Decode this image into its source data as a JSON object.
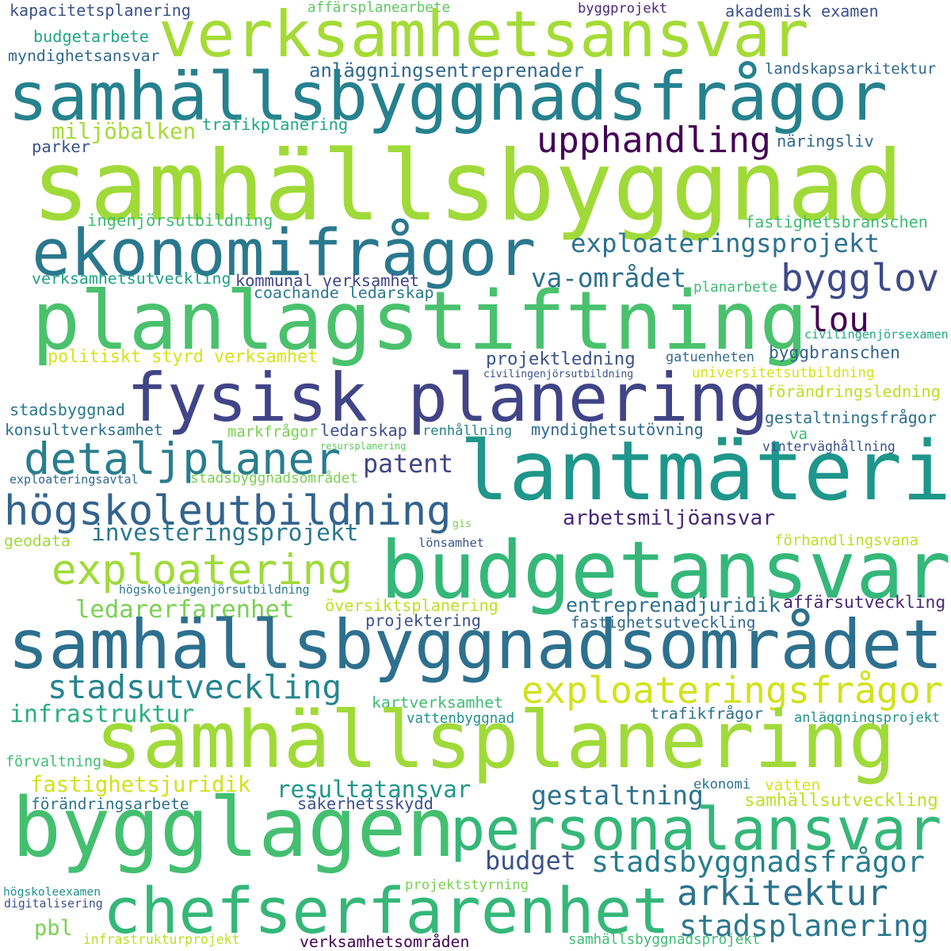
{
  "words": [
    {
      "text": "kapacitetsplanering",
      "color": "#3b528b"
    },
    {
      "text": "affärsplanearbete",
      "color": "#5ec962"
    },
    {
      "text": "byggprojekt",
      "color": "#482878"
    },
    {
      "text": "akademisk examen",
      "color": "#3b528b"
    },
    {
      "text": "verksamhetsansvar",
      "color": "#a5db36"
    },
    {
      "text": "budgetarbete",
      "color": "#21a585"
    },
    {
      "text": "myndighetsansvar",
      "color": "#31688e"
    },
    {
      "text": "anläggningsentreprenader",
      "color": "#31688e"
    },
    {
      "text": "landskapsarkitektur",
      "color": "#31688e"
    },
    {
      "text": "samhällsbyggnadsfrågor",
      "color": "#26818e"
    },
    {
      "text": "miljöbalken",
      "color": "#a5db36"
    },
    {
      "text": "trafikplanering",
      "color": "#22a884"
    },
    {
      "text": "upphandling",
      "color": "#440154"
    },
    {
      "text": "parker",
      "color": "#3b528b"
    },
    {
      "text": "näringsliv",
      "color": "#31688e"
    },
    {
      "text": "samhällsbyggnad",
      "color": "#a0da39"
    },
    {
      "text": "ingenjörsutbildning",
      "color": "#3fbc73"
    },
    {
      "text": "fastighetsbranschen",
      "color": "#3fbc73"
    },
    {
      "text": "ekonomifrågor",
      "color": "#2a788e"
    },
    {
      "text": "exploateringsprojekt",
      "color": "#2c728e"
    },
    {
      "text": "verksamhetsutveckling",
      "color": "#1fa187"
    },
    {
      "text": "kommunal verksamhet",
      "color": "#404688"
    },
    {
      "text": "va-området",
      "color": "#2d708e"
    },
    {
      "text": "bygglov",
      "color": "#3e4a89"
    },
    {
      "text": "coachande ledarskap",
      "color": "#2a788e"
    },
    {
      "text": "planarbete",
      "color": "#3fbc73"
    },
    {
      "text": "planlagstiftning",
      "color": "#4ac16d"
    },
    {
      "text": "lou",
      "color": "#440154"
    },
    {
      "text": "civilingenjörsexamen",
      "color": "#22a884"
    },
    {
      "text": "politiskt styrd verksamhet",
      "color": "#d8e219"
    },
    {
      "text": "projektledning",
      "color": "#3b528b"
    },
    {
      "text": "gatuenheten",
      "color": "#31688e"
    },
    {
      "text": "byggbranschen",
      "color": "#33638d"
    },
    {
      "text": "fysisk planering",
      "color": "#414487"
    },
    {
      "text": "civilingenjörsutbildning",
      "color": "#3b528b"
    },
    {
      "text": "universitetsutbildning",
      "color": "#d8e219"
    },
    {
      "text": "förändringsledning",
      "color": "#bddf26"
    },
    {
      "text": "stadsbyggnad",
      "color": "#2a788e"
    },
    {
      "text": "gestaltningsfrågor",
      "color": "#2d708e"
    },
    {
      "text": "konsultverksamhet",
      "color": "#2c728e"
    },
    {
      "text": "markfrågor",
      "color": "#7ad151"
    },
    {
      "text": "ledarskap",
      "color": "#3b528b"
    },
    {
      "text": "renhållning",
      "color": "#26828e"
    },
    {
      "text": "myndighetsutövning",
      "color": "#31688e"
    },
    {
      "text": "va",
      "color": "#3fbc73"
    },
    {
      "text": "detaljplaner",
      "color": "#287d8e"
    },
    {
      "text": "lantmäteri",
      "color": "#1f968b"
    },
    {
      "text": "resursplanering",
      "color": "#5ec962"
    },
    {
      "text": "vinterväghållning",
      "color": "#3b528b"
    },
    {
      "text": "patent",
      "color": "#404688"
    },
    {
      "text": "exploateringsavtal",
      "color": "#31688e"
    },
    {
      "text": "stadsbyggnadsområdet",
      "color": "#7ad151"
    },
    {
      "text": "högskoleutbildning",
      "color": "#33638d"
    },
    {
      "text": "arbetsmiljöansvar",
      "color": "#482878"
    },
    {
      "text": "gis",
      "color": "#7ad151"
    },
    {
      "text": "investeringsprojekt",
      "color": "#2a788e"
    },
    {
      "text": "geodata",
      "color": "#a0da39"
    },
    {
      "text": "lönsamhet",
      "color": "#3b528b"
    },
    {
      "text": "förhandlingsvana",
      "color": "#bddf26"
    },
    {
      "text": "exploatering",
      "color": "#a0da39"
    },
    {
      "text": "budgetansvar",
      "color": "#35b779"
    },
    {
      "text": "högskoleingenjörsutbildning",
      "color": "#2a788e"
    },
    {
      "text": "ledarerfarenhet",
      "color": "#7ad151"
    },
    {
      "text": "översiktsplanering",
      "color": "#bddf26"
    },
    {
      "text": "entreprenadjuridik",
      "color": "#2d708e"
    },
    {
      "text": "affärsutveckling",
      "color": "#482878"
    },
    {
      "text": "projektering",
      "color": "#3b528b"
    },
    {
      "text": "fastighetsutveckling",
      "color": "#31688e"
    },
    {
      "text": "samhällsbyggnadsområdet",
      "color": "#2d708e"
    },
    {
      "text": "stadsutveckling",
      "color": "#25858e"
    },
    {
      "text": "exploateringsfrågor",
      "color": "#d2e21b"
    },
    {
      "text": "infrastruktur",
      "color": "#2ab07f"
    },
    {
      "text": "kartverksamhet",
      "color": "#3fbc73"
    },
    {
      "text": "trafikfrågor",
      "color": "#2c728e"
    },
    {
      "text": "vattenbyggnad",
      "color": "#21918c"
    },
    {
      "text": "anläggningsprojekt",
      "color": "#21918c"
    },
    {
      "text": "samhällsplanering",
      "color": "#a0da39"
    },
    {
      "text": "förvaltning",
      "color": "#3fbc73"
    },
    {
      "text": "fastighetsjuridik",
      "color": "#d2e21b"
    },
    {
      "text": "resultatansvar",
      "color": "#1f968b"
    },
    {
      "text": "gestaltning",
      "color": "#2c728e"
    },
    {
      "text": "ekonomi",
      "color": "#2c728e"
    },
    {
      "text": "vatten",
      "color": "#d8e219"
    },
    {
      "text": "samhällsutveckling",
      "color": "#bddf26"
    },
    {
      "text": "förändringsarbete",
      "color": "#2c728e"
    },
    {
      "text": "säkerhetsskydd",
      "color": "#3b528b"
    },
    {
      "text": "bygglagen",
      "color": "#44bf70"
    },
    {
      "text": "personalansvar",
      "color": "#35b779"
    },
    {
      "text": "budget",
      "color": "#3b528b"
    },
    {
      "text": "stadsbyggnadsfrågor",
      "color": "#287d8e"
    },
    {
      "text": "arkitektur",
      "color": "#2c728e"
    },
    {
      "text": "högskoleexamen",
      "color": "#21918c"
    },
    {
      "text": "digitalisering",
      "color": "#3b528b"
    },
    {
      "text": "projektstyrning",
      "color": "#7ad151"
    },
    {
      "text": "chefserfarenhet",
      "color": "#35b779"
    },
    {
      "text": "pbl",
      "color": "#7ad151"
    },
    {
      "text": "stadsplanering",
      "color": "#2a788e"
    },
    {
      "text": "infrastrukturprojekt",
      "color": "#bddf26"
    },
    {
      "text": "verksamhetsområden",
      "color": "#440154"
    },
    {
      "text": "samhällsbyggnadsprojekt",
      "color": "#3fbc73"
    }
  ]
}
